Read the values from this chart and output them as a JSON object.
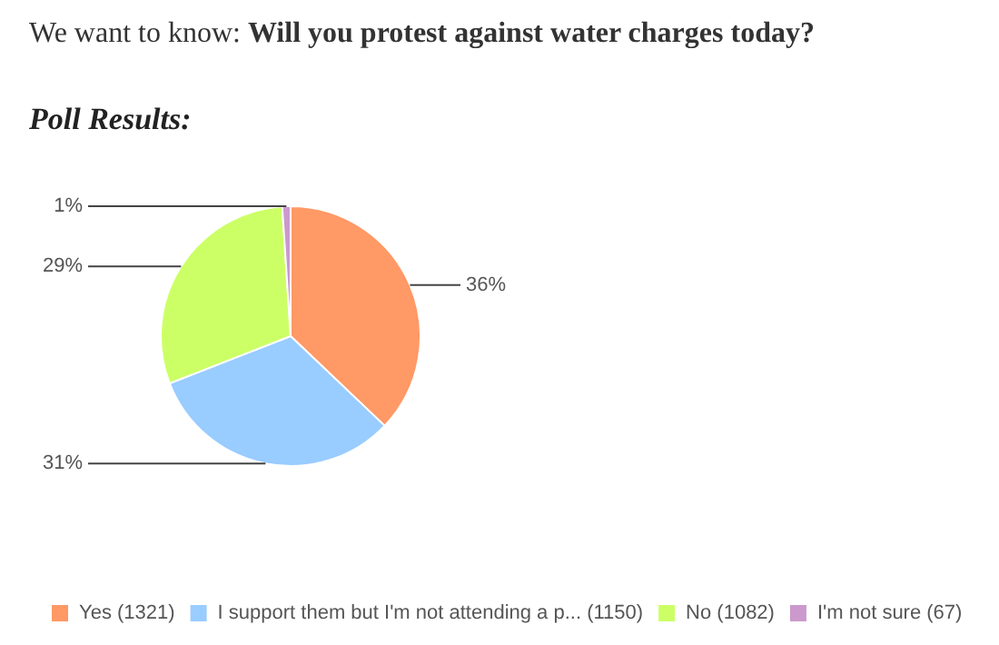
{
  "chart_data": {
    "type": "pie",
    "title": "We want to know: Will you protest against water charges today?",
    "subtitle": "Poll Results:",
    "categories": [
      "Yes (1321)",
      "I support them but I'm not attending a p... (1150)",
      "No (1082)",
      "I'm not sure (67)"
    ],
    "values": [
      36,
      31,
      29,
      1
    ],
    "value_labels": [
      "36%",
      "31%",
      "29%",
      "1%"
    ],
    "colors": [
      "#ff9966",
      "#99ccff",
      "#ccff66",
      "#cc99cc"
    ],
    "legend": "bottom"
  }
}
